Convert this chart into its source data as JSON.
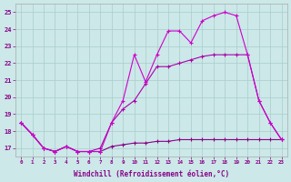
{
  "xlabel": "Windchill (Refroidissement éolien,°C)",
  "bg_color": "#cce8e8",
  "grid_color": "#aacccc",
  "text_color": "#880088",
  "xlim_min": -0.5,
  "xlim_max": 23.5,
  "ylim_min": 16.5,
  "ylim_max": 25.5,
  "yticks": [
    17,
    18,
    19,
    20,
    21,
    22,
    23,
    24,
    25
  ],
  "xticks": [
    0,
    1,
    2,
    3,
    4,
    5,
    6,
    7,
    8,
    9,
    10,
    11,
    12,
    13,
    14,
    15,
    16,
    17,
    18,
    19,
    20,
    21,
    22,
    23
  ],
  "s1_x": [
    0,
    1,
    2,
    3,
    4,
    5,
    6,
    7,
    8,
    9,
    10,
    11,
    12,
    13,
    14,
    15,
    16,
    17,
    18,
    19,
    20,
    21,
    22,
    23
  ],
  "s1_y": [
    18.5,
    17.8,
    17.0,
    16.8,
    17.1,
    16.8,
    16.8,
    16.8,
    17.1,
    17.2,
    17.3,
    17.3,
    17.4,
    17.4,
    17.5,
    17.5,
    17.5,
    17.5,
    17.5,
    17.5,
    17.5,
    17.5,
    17.5,
    17.5
  ],
  "s2_x": [
    0,
    1,
    2,
    3,
    4,
    5,
    6,
    7,
    8,
    9,
    10,
    11,
    12,
    13,
    14,
    15,
    16,
    17,
    18,
    19,
    20,
    21,
    22,
    23
  ],
  "s2_y": [
    18.5,
    17.8,
    17.0,
    16.8,
    17.1,
    16.8,
    16.8,
    17.0,
    18.5,
    19.3,
    19.8,
    20.8,
    21.8,
    21.8,
    22.0,
    22.2,
    22.4,
    22.5,
    22.5,
    22.5,
    22.5,
    19.8,
    18.5,
    17.5
  ],
  "s3_x": [
    0,
    1,
    2,
    3,
    4,
    5,
    6,
    7,
    8,
    9,
    10,
    11,
    12,
    13,
    14,
    15,
    16,
    17,
    18,
    19,
    20,
    21,
    22,
    23
  ],
  "s3_y": [
    18.5,
    17.8,
    17.0,
    16.8,
    17.1,
    16.8,
    16.8,
    16.8,
    18.5,
    19.8,
    22.5,
    20.9,
    22.5,
    23.9,
    23.9,
    23.2,
    24.5,
    24.8,
    25.0,
    24.8,
    22.5,
    19.8,
    18.5,
    17.5
  ],
  "s1_color": "#880088",
  "s2_color": "#aa00aa",
  "s3_color": "#cc00cc"
}
